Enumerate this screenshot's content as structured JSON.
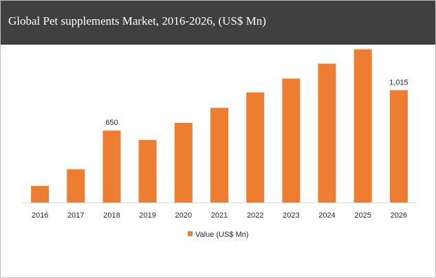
{
  "title": "Global Pet supplements Market, 2016-2026, (US$ Mn)",
  "colors": {
    "title_bar": "#404040",
    "title_text": "#ffffff",
    "bar": "#ed7d31",
    "axis": "#d9d9d9",
    "text": "#262626"
  },
  "chart_data": {
    "type": "bar",
    "categories": [
      "2016",
      "2017",
      "2018",
      "2019",
      "2020",
      "2021",
      "2022",
      "2023",
      "2024",
      "2025",
      "2026"
    ],
    "series": [
      {
        "name": "Value (US$ Mn)",
        "values": [
          150,
          300,
          650,
          565,
          720,
          855,
          995,
          1120,
          1255,
          1385,
          1015
        ],
        "data_labels": [
          "",
          "",
          "650",
          "",
          "",
          "",
          "",
          "",
          "",
          "",
          "1,015"
        ]
      }
    ],
    "title": "Global Pet supplements Market, 2016-2026, (US$ Mn)",
    "xlabel": "",
    "ylabel": "",
    "ylim": [
      0,
      1700
    ],
    "grid": false,
    "legend": "bottom-center"
  }
}
